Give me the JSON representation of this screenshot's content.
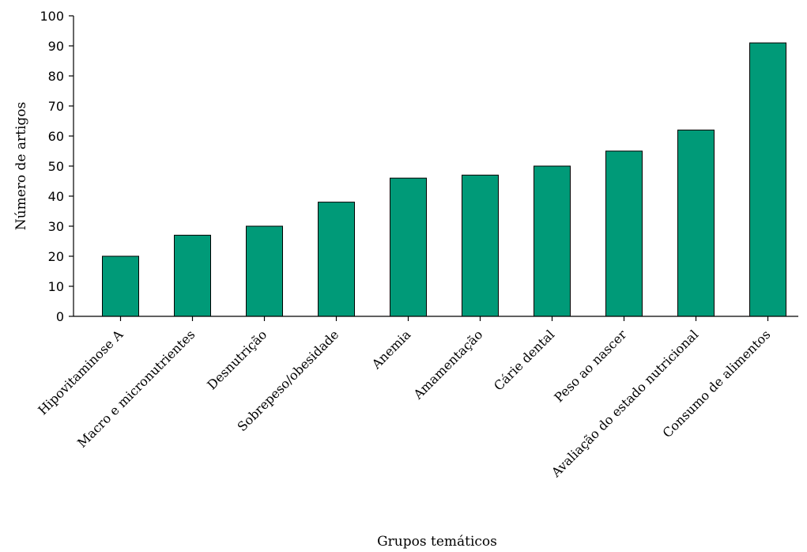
{
  "chart_data": {
    "type": "bar",
    "xlabel": "Grupos temáticos",
    "ylabel": "Número de artigos",
    "ylim": [
      0,
      100
    ],
    "yticks": [
      0,
      10,
      20,
      30,
      40,
      50,
      60,
      70,
      80,
      90,
      100
    ],
    "categories": [
      "Hipovitaminose A",
      "Macro e micronutrientes",
      "Desnutrição",
      "Sobrepeso/obesidade",
      "Anemia",
      "Amamentação",
      "Cárie dental",
      "Peso ao nascer",
      "Avaliação do estado nutricional",
      "Consumo de alimentos"
    ],
    "values": [
      20,
      27,
      30,
      38,
      46,
      47,
      50,
      55,
      62,
      91
    ],
    "grid": false,
    "bar_color": "#009a78",
    "bar_edge_color": "#000000"
  }
}
